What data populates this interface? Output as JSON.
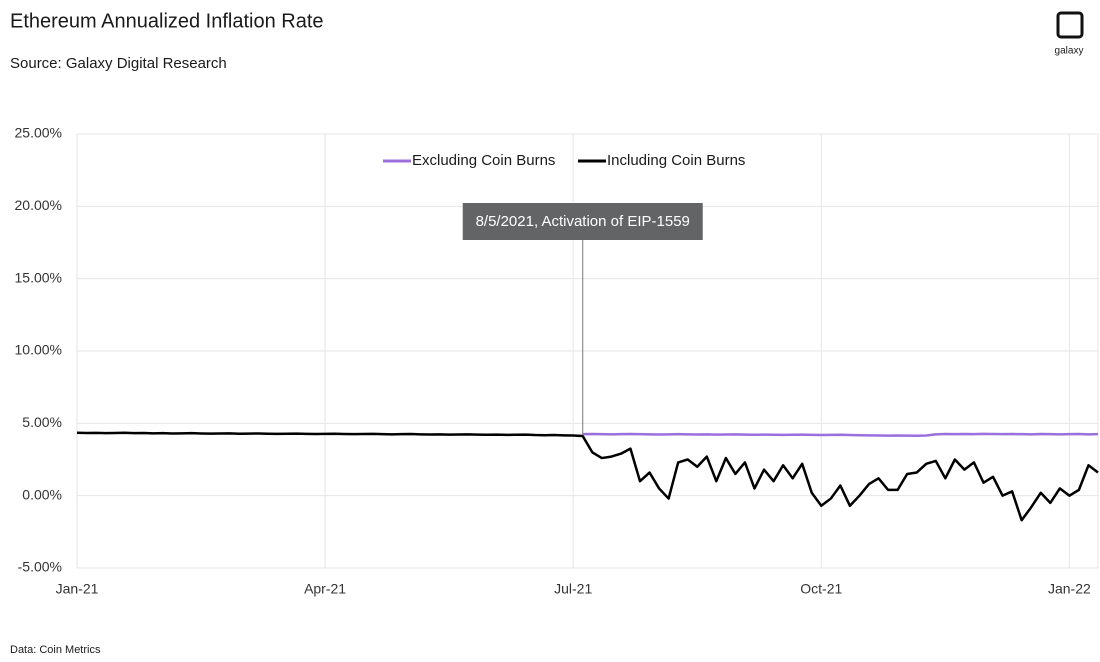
{
  "title": "Ethereum Annualized Inflation Rate",
  "subtitle": "Source: Galaxy Digital Research",
  "brand": "galaxy",
  "footnote": "Data: Coin Metrics",
  "chart_data": {
    "type": "line",
    "annotation": "8/5/2021, Activation of EIP-1559",
    "categories": [
      "Jan-21",
      null,
      null,
      null,
      null,
      null,
      null,
      null,
      null,
      null,
      null,
      null,
      null,
      null,
      null,
      null,
      null,
      null,
      null,
      null,
      null,
      null,
      null,
      null,
      null,
      null,
      "Apr-21",
      null,
      null,
      null,
      null,
      null,
      null,
      null,
      null,
      null,
      null,
      null,
      null,
      null,
      null,
      null,
      null,
      null,
      null,
      null,
      null,
      null,
      null,
      null,
      null,
      null,
      "Jul-21",
      null,
      null,
      null,
      null,
      null,
      null,
      null,
      null,
      null,
      null,
      null,
      null,
      null,
      null,
      null,
      null,
      null,
      null,
      null,
      null,
      null,
      null,
      null,
      null,
      null,
      "Oct-21",
      null,
      null,
      null,
      null,
      null,
      null,
      null,
      null,
      null,
      null,
      null,
      null,
      null,
      null,
      null,
      null,
      null,
      null,
      null,
      null,
      null,
      null,
      null,
      null,
      null,
      "Jan-22",
      null,
      null,
      null
    ],
    "series": [
      {
        "name": "Excluding Coin Burns",
        "color": "#9b6fdc",
        "values": [
          null,
          null,
          null,
          null,
          null,
          null,
          null,
          null,
          null,
          null,
          null,
          null,
          null,
          null,
          null,
          null,
          null,
          null,
          null,
          null,
          null,
          null,
          null,
          null,
          null,
          null,
          null,
          null,
          null,
          null,
          null,
          null,
          null,
          null,
          null,
          null,
          null,
          null,
          null,
          null,
          null,
          null,
          null,
          null,
          null,
          null,
          null,
          null,
          null,
          null,
          null,
          null,
          null,
          4.25,
          4.26,
          4.25,
          4.24,
          4.25,
          4.26,
          4.25,
          4.24,
          4.23,
          4.24,
          4.25,
          4.24,
          4.23,
          4.24,
          4.22,
          4.23,
          4.24,
          4.22,
          4.21,
          4.22,
          4.21,
          4.2,
          4.21,
          4.22,
          4.2,
          4.19,
          4.2,
          4.21,
          4.19,
          4.18,
          4.17,
          4.16,
          4.15,
          4.16,
          4.15,
          4.14,
          4.16,
          4.24,
          4.26,
          4.25,
          4.26,
          4.25,
          4.27,
          4.26,
          4.25,
          4.26,
          4.25,
          4.24,
          4.26,
          4.25,
          4.24,
          4.25,
          4.26,
          4.24,
          4.25
        ]
      },
      {
        "name": "Including Coin Burns",
        "color": "#000000",
        "values": [
          4.35,
          4.33,
          4.34,
          4.32,
          4.33,
          4.35,
          4.32,
          4.33,
          4.31,
          4.32,
          4.3,
          4.31,
          4.32,
          4.3,
          4.29,
          4.3,
          4.31,
          4.28,
          4.29,
          4.3,
          4.28,
          4.27,
          4.28,
          4.29,
          4.27,
          4.26,
          4.27,
          4.28,
          4.26,
          4.25,
          4.26,
          4.27,
          4.25,
          4.24,
          4.25,
          4.26,
          4.24,
          4.23,
          4.24,
          4.22,
          4.23,
          4.24,
          4.22,
          4.21,
          4.22,
          4.2,
          4.21,
          4.22,
          4.19,
          4.18,
          4.19,
          4.17,
          4.16,
          4.12,
          3.0,
          2.6,
          2.7,
          2.9,
          3.25,
          1.0,
          1.6,
          0.5,
          -0.2,
          2.3,
          2.5,
          2.0,
          2.7,
          1.0,
          2.6,
          1.5,
          2.3,
          0.5,
          1.8,
          1.0,
          2.1,
          1.2,
          2.2,
          0.2,
          -0.7,
          -0.2,
          0.7,
          -0.7,
          0.0,
          0.8,
          1.2,
          0.4,
          0.4,
          1.5,
          1.6,
          2.2,
          2.4,
          1.2,
          2.5,
          1.8,
          2.3,
          0.9,
          1.3,
          0.0,
          0.3,
          -1.7,
          -0.8,
          0.2,
          -0.5,
          0.5,
          0.0,
          0.4,
          2.1,
          1.6
        ]
      }
    ],
    "ylim": [
      -5,
      25
    ],
    "yticks": [
      {
        "value": -5,
        "label": "-5.00%"
      },
      {
        "value": 0,
        "label": "0.00%"
      },
      {
        "value": 5,
        "label": "5.00%"
      },
      {
        "value": 10,
        "label": "10.00%"
      },
      {
        "value": 15,
        "label": "15.00%"
      },
      {
        "value": 20,
        "label": "20.00%"
      },
      {
        "value": 25,
        "label": "25.00%"
      }
    ],
    "grid": true
  }
}
